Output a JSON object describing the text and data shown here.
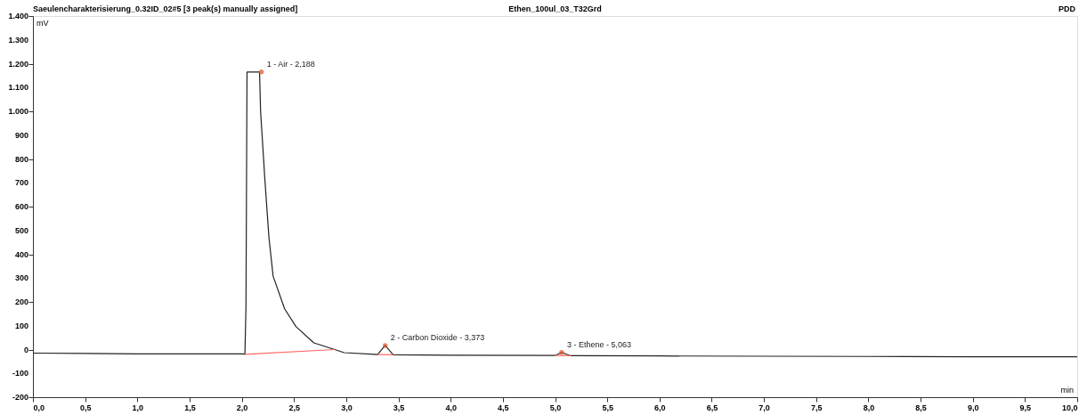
{
  "chart_data": {
    "type": "line",
    "title": "Saeulencharakterisierung_0.32ID_02#5 [3 peak(s) manually assigned]",
    "subtitle": "Ethen_100ul_03_T32Grd",
    "xlabel": "min",
    "ylabel": "mV",
    "x": [
      0,
      0.5,
      1.0,
      1.5,
      2.0,
      2.03,
      2.04,
      2.05,
      2.17,
      2.18,
      2.22,
      2.26,
      2.3,
      2.41,
      2.52,
      2.69,
      2.89,
      2.98,
      3.27,
      3.3,
      3.373,
      3.45,
      4.0,
      5.0,
      5.063,
      5.15,
      6.0,
      7.0,
      8.0,
      9.0,
      10.0
    ],
    "series": [
      {
        "type": "line",
        "color": "#222222",
        "values": [
          -15,
          -16,
          -18,
          -18,
          -18,
          -19,
          180,
          1165,
          1165,
          1000,
          720,
          470,
          308,
          171,
          96,
          28,
          0,
          -13,
          -20,
          -21,
          17,
          -22,
          -24,
          -25,
          -12,
          -26,
          -27,
          -28,
          -29,
          -30,
          -30
        ]
      },
      {
        "type": "line",
        "color": "#ff6666",
        "x": [
          2.03,
          2.89
        ],
        "values": [
          -20,
          0
        ]
      },
      {
        "type": "line",
        "color": "#ff6666",
        "x": [
          3.3,
          3.45
        ],
        "values": [
          -21,
          -22
        ]
      },
      {
        "type": "line",
        "color": "#ff6666",
        "x": [
          5.0,
          5.15
        ],
        "values": [
          -25,
          -26
        ]
      }
    ],
    "xlim": [
      0,
      10
    ],
    "ylim": [
      -200,
      1400
    ],
    "xticks": [
      {
        "value": 0,
        "label": "0,0"
      },
      {
        "value": 0.5,
        "label": "0,5"
      },
      {
        "value": 1,
        "label": "1,0"
      },
      {
        "value": 1.5,
        "label": "1,5"
      },
      {
        "value": 2,
        "label": "2,0"
      },
      {
        "value": 2.5,
        "label": "2,5"
      },
      {
        "value": 3,
        "label": "3,0"
      },
      {
        "value": 3.5,
        "label": "3,5"
      },
      {
        "value": 4,
        "label": "4,0"
      },
      {
        "value": 4.5,
        "label": "4,5"
      },
      {
        "value": 5,
        "label": "5,0"
      },
      {
        "value": 5.5,
        "label": "5,5"
      },
      {
        "value": 6,
        "label": "6,0"
      },
      {
        "value": 6.5,
        "label": "6,5"
      },
      {
        "value": 7,
        "label": "7,0"
      },
      {
        "value": 7.5,
        "label": "7,5"
      },
      {
        "value": 8,
        "label": "8,0"
      },
      {
        "value": 8.5,
        "label": "8,5"
      },
      {
        "value": 9,
        "label": "9,0"
      },
      {
        "value": 9.5,
        "label": "9,5"
      },
      {
        "value": 10,
        "label": "10,0"
      }
    ],
    "yticks": [
      -200,
      -100,
      0,
      100,
      200,
      300,
      400,
      500,
      600,
      700,
      800,
      900,
      {
        "value": 1000,
        "label": "1.000"
      },
      {
        "value": 1100,
        "label": "1.100"
      },
      {
        "value": 1200,
        "label": "1.200"
      },
      {
        "value": 1300,
        "label": "1.300"
      },
      {
        "value": 1400,
        "label": "1.400"
      }
    ],
    "annotations": [
      {
        "text": "1 - Air - 2,188",
        "x": 2.188,
        "y": 1165
      },
      {
        "text": "2 - Carbon Dioxide - 3,373",
        "x": 3.373,
        "y": 17
      },
      {
        "text": "3 - Ethene - 5,063",
        "x": 5.063,
        "y": -12
      },
      "PDD"
    ],
    "grid": false,
    "legend": false,
    "marker": "none",
    "line_style": "solid"
  }
}
